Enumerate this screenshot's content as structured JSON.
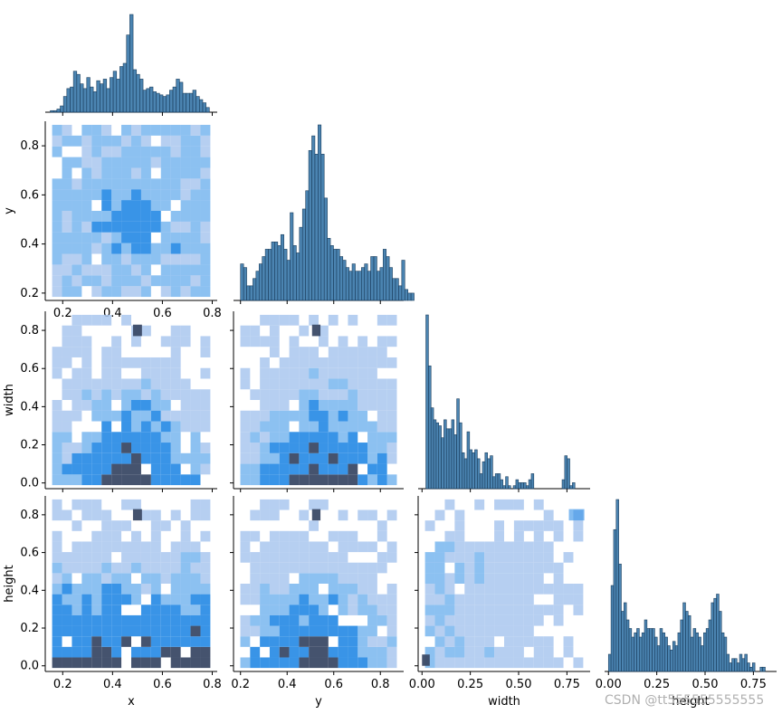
{
  "figure": {
    "type": "pairplot",
    "watermark": "CSDN @tt555555555555"
  },
  "colors": {
    "hist_fill": "#2b6ea3",
    "hist_edge": "#1d3f5e",
    "heat_base": "#a9c7ef",
    "heat_mid": "#2e8ee6",
    "heat_dark": "#3b4a66",
    "axis": "#000000"
  },
  "chart_data": [
    {
      "type": "bar",
      "panel": "x-hist",
      "xlabel": "",
      "ylabel": "",
      "xlim": [
        0.13,
        0.82
      ],
      "bin_width": 0.0133,
      "x_start": 0.15,
      "values": [
        1,
        1,
        2,
        4,
        10,
        15,
        16,
        26,
        24,
        18,
        15,
        22,
        16,
        13,
        20,
        18,
        21,
        15,
        22,
        26,
        21,
        29,
        31,
        49,
        62,
        27,
        24,
        21,
        14,
        15,
        16,
        13,
        12,
        11,
        10,
        11,
        14,
        16,
        21,
        19,
        12,
        12,
        12,
        14,
        10,
        8,
        6,
        3
      ]
    },
    {
      "type": "heatmap",
      "panel": "y-vs-x",
      "xlabel": "",
      "ylabel": "y",
      "xlim": [
        0.13,
        0.82
      ],
      "ylim": [
        0.17,
        0.9
      ],
      "x_ticks": [
        "0.2",
        "0.4",
        "0.6",
        "0.8"
      ],
      "y_ticks": [
        "0.2",
        "0.4",
        "0.6",
        "0.8"
      ]
    },
    {
      "type": "bar",
      "panel": "y-hist",
      "xlabel": "",
      "ylabel": "",
      "xlim": [
        0.17,
        0.9
      ],
      "bin_width": 0.0133,
      "x_start": 0.2,
      "values": [
        10,
        9,
        4,
        4,
        6,
        8,
        10,
        12,
        14,
        14,
        16,
        16,
        15,
        18,
        14,
        11,
        24,
        15,
        13,
        20,
        25,
        30,
        41,
        45,
        40,
        48,
        40,
        28,
        17,
        15,
        14,
        14,
        12,
        11,
        9,
        8,
        10,
        8,
        8,
        9,
        10,
        8,
        12,
        12,
        8,
        9,
        14,
        12,
        9,
        6,
        6,
        4,
        11,
        3,
        2,
        2
      ]
    },
    {
      "type": "heatmap",
      "panel": "width-vs-x",
      "xlabel": "",
      "ylabel": "width",
      "xlim": [
        0.13,
        0.82
      ],
      "ylim": [
        -0.03,
        0.9
      ],
      "y_ticks": [
        "0.0",
        "0.2",
        "0.4",
        "0.6",
        "0.8"
      ]
    },
    {
      "type": "heatmap",
      "panel": "width-vs-y",
      "xlabel": "",
      "ylabel": "",
      "xlim": [
        0.17,
        0.9
      ],
      "ylim": [
        -0.03,
        0.9
      ]
    },
    {
      "type": "bar",
      "panel": "width-hist",
      "xlabel": "",
      "ylabel": "",
      "xlim": [
        -0.02,
        0.87
      ],
      "bin_width": 0.0133,
      "x_start": 0.02,
      "values": [
        58,
        41,
        27,
        23,
        22,
        21,
        17,
        23,
        20,
        20,
        23,
        18,
        30,
        22,
        12,
        10,
        19,
        13,
        12,
        13,
        10,
        5,
        9,
        12,
        10,
        11,
        4,
        5,
        5,
        3,
        1,
        4,
        1,
        0,
        1,
        3,
        2,
        2,
        2,
        1,
        3,
        5,
        0,
        0,
        0,
        0,
        0,
        0,
        0,
        0,
        0,
        0,
        0,
        3,
        11,
        10,
        1,
        2
      ]
    },
    {
      "type": "heatmap",
      "panel": "height-vs-x",
      "xlabel": "x",
      "ylabel": "height",
      "xlim": [
        0.13,
        0.82
      ],
      "ylim": [
        -0.03,
        0.9
      ],
      "x_ticks": [
        "0.2",
        "0.4",
        "0.6",
        "0.8"
      ],
      "y_ticks": [
        "0.0",
        "0.2",
        "0.4",
        "0.6",
        "0.8"
      ]
    },
    {
      "type": "heatmap",
      "panel": "height-vs-y",
      "xlabel": "y",
      "ylabel": "",
      "xlim": [
        0.17,
        0.9
      ],
      "ylim": [
        -0.03,
        0.9
      ],
      "x_ticks": [
        "0.2",
        "0.4",
        "0.6",
        "0.8"
      ]
    },
    {
      "type": "heatmap",
      "panel": "height-vs-width",
      "xlabel": "width",
      "ylabel": "",
      "xlim": [
        -0.02,
        0.87
      ],
      "ylim": [
        -0.03,
        0.9
      ],
      "x_ticks": [
        "0.00",
        "0.25",
        "0.50",
        "0.75"
      ]
    },
    {
      "type": "bar",
      "panel": "height-hist",
      "xlabel": "height",
      "ylabel": "",
      "xlim": [
        -0.02,
        0.87
      ],
      "x_ticks": [
        "0.00",
        "0.25",
        "0.50",
        "0.75"
      ],
      "bin_width": 0.0133,
      "x_start": 0.0,
      "values": [
        4,
        20,
        33,
        40,
        25,
        14,
        16,
        12,
        10,
        8,
        9,
        10,
        8,
        9,
        12,
        10,
        10,
        10,
        8,
        6,
        10,
        9,
        8,
        6,
        5,
        7,
        6,
        9,
        12,
        16,
        14,
        13,
        8,
        10,
        9,
        8,
        6,
        9,
        10,
        12,
        16,
        17,
        18,
        14,
        9,
        8,
        4,
        2,
        3,
        3,
        2,
        4,
        3,
        4,
        2,
        1,
        2,
        0,
        0,
        1,
        1,
        0,
        0,
        0,
        0,
        0,
        0,
        0,
        0,
        0,
        4,
        5,
        3,
        3
      ]
    }
  ]
}
